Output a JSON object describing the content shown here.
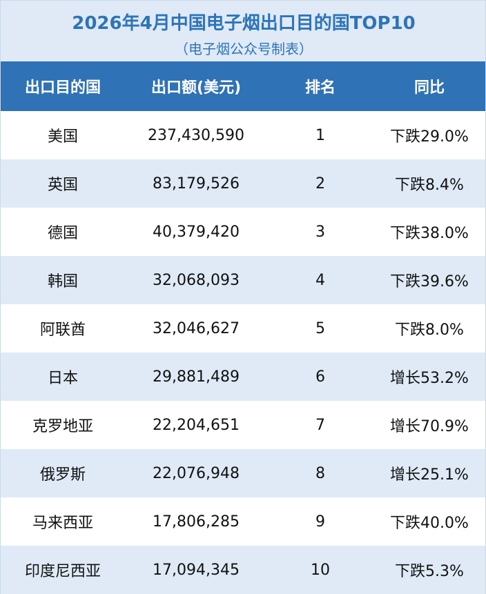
{
  "header": {
    "title": "2026年4月中国电子烟出口目的国TOP10",
    "subtitle": "（电子烟公众号制表）"
  },
  "table": {
    "columns": [
      "出口目的国",
      "出口额(美元)",
      "排名",
      "同比"
    ],
    "rows": [
      [
        "美国",
        "237,430,590",
        "1",
        "下跌29.0%"
      ],
      [
        "英国",
        "83,179,526",
        "2",
        "下跌8.4%"
      ],
      [
        "德国",
        "40,379,420",
        "3",
        "下跌38.0%"
      ],
      [
        "韩国",
        "32,068,093",
        "4",
        "下跌39.6%"
      ],
      [
        "阿联酋",
        "32,046,627",
        "5",
        "下跌8.0%"
      ],
      [
        "日本",
        "29,881,489",
        "6",
        "增长53.2%"
      ],
      [
        "克罗地亚",
        "22,204,651",
        "7",
        "增长70.9%"
      ],
      [
        "俄罗斯",
        "22,076,948",
        "8",
        "增长25.1%"
      ],
      [
        "马来西亚",
        "17,806,285",
        "9",
        "下跌40.0%"
      ],
      [
        "印度尼西亚",
        "17,094,345",
        "10",
        "下跌5.3%"
      ]
    ]
  }
}
